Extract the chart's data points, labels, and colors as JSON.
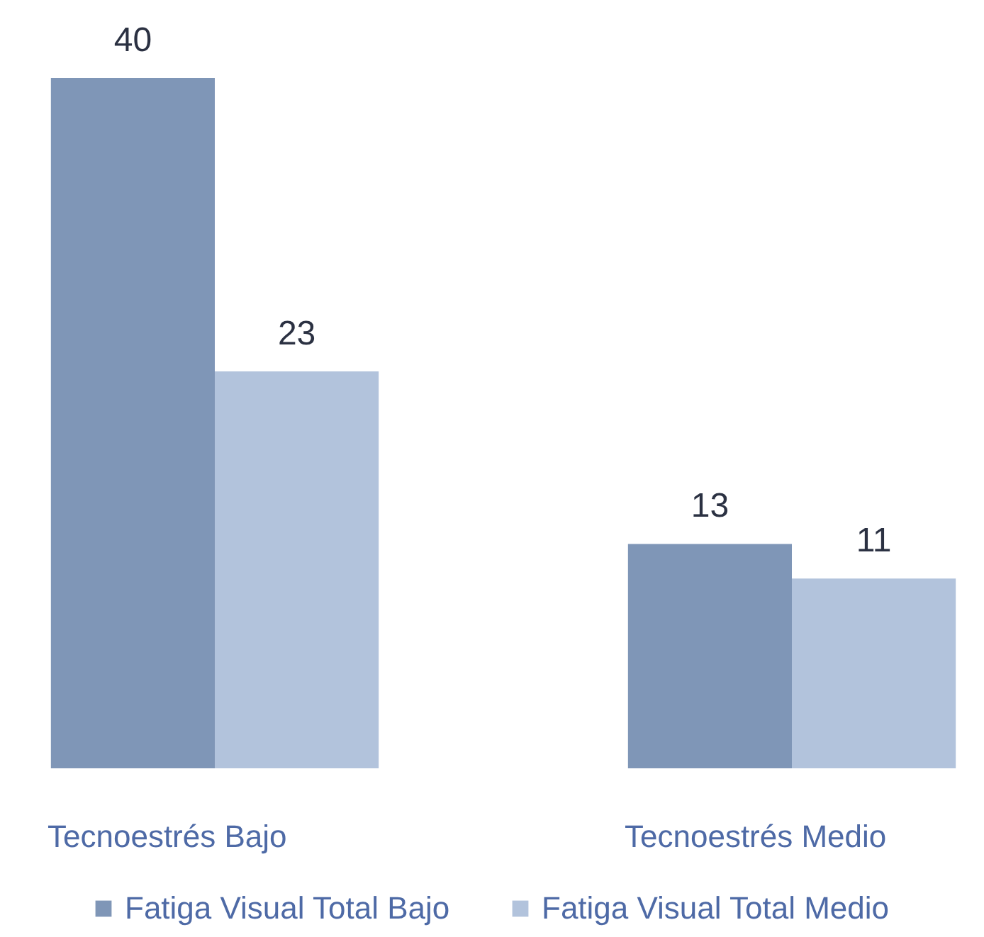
{
  "chart_data": {
    "type": "bar",
    "categories": [
      "Tecnoestrés Bajo",
      "Tecnoestrés Medio"
    ],
    "series": [
      {
        "name": "Fatiga Visual Total Bajo",
        "color": "#7f96b7",
        "values": [
          40,
          13
        ]
      },
      {
        "name": "Fatiga Visual Total Medio",
        "color": "#b2c3dc",
        "values": [
          23,
          11
        ]
      }
    ],
    "data_labels": true,
    "legend": "bottom",
    "grid": false
  }
}
